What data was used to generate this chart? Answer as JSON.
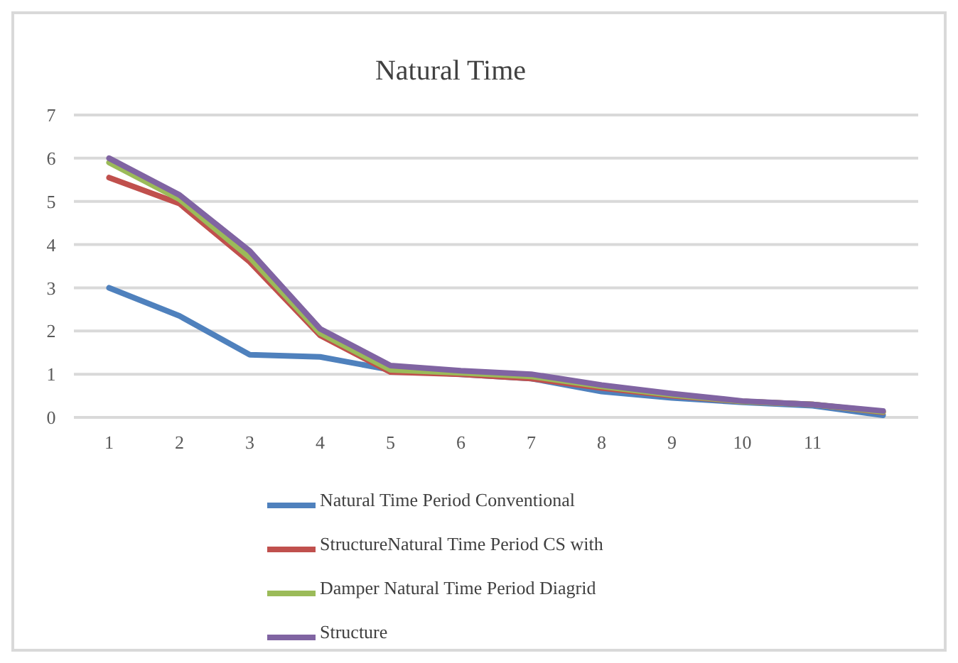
{
  "chart_data": {
    "type": "line",
    "title": "Natural Time",
    "categories": [
      "1",
      "2",
      "3",
      "4",
      "5",
      "6",
      "7",
      "8",
      "9",
      "10",
      "11",
      null
    ],
    "ylim": [
      0,
      7
    ],
    "yticks": [
      0,
      1,
      2,
      3,
      4,
      5,
      6,
      7
    ],
    "grid": "y",
    "legend": "bottom",
    "marker": "none",
    "line_style": "solid",
    "series": [
      {
        "name": "Natural Time Period Conventional",
        "color": "#4f81bd",
        "values": [
          3.0,
          2.35,
          1.45,
          1.4,
          1.1,
          1.0,
          0.9,
          0.6,
          0.45,
          0.35,
          0.27,
          0.05
        ]
      },
      {
        "name": "StructureNatural Time Period CS with",
        "color": "#c0504d",
        "values": [
          5.55,
          4.95,
          3.6,
          1.9,
          1.05,
          1.0,
          0.9,
          0.68,
          0.5,
          0.37,
          0.3,
          0.12
        ]
      },
      {
        "name": "Damper Natural Time Period Diagrid",
        "color": "#9bbb59",
        "values": [
          5.9,
          5.05,
          3.7,
          1.95,
          1.1,
          1.03,
          0.95,
          0.72,
          0.52,
          0.37,
          0.3,
          0.13
        ]
      },
      {
        "name": "Structure",
        "color": "#8064a2",
        "values": [
          6.0,
          5.15,
          3.85,
          2.05,
          1.2,
          1.08,
          1.0,
          0.75,
          0.55,
          0.38,
          0.3,
          0.15
        ]
      }
    ]
  }
}
